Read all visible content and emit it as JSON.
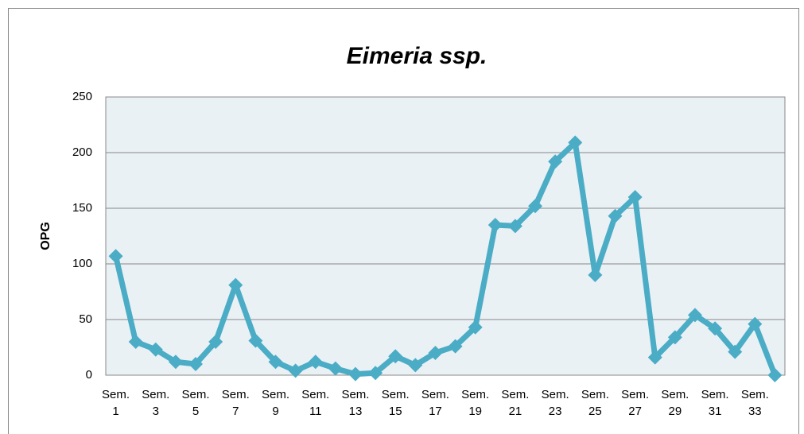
{
  "chart_data": {
    "type": "line",
    "title": "Eimeria ssp.",
    "y_label": "OPG",
    "categories": [
      "Sem. 1",
      null,
      "Sem. 3",
      null,
      "Sem. 5",
      null,
      "Sem. 7",
      null,
      "Sem. 9",
      null,
      "Sem. 11",
      null,
      "Sem. 13",
      null,
      "Sem. 15",
      null,
      "Sem. 17",
      null,
      "Sem. 19",
      null,
      "Sem. 21",
      null,
      "Sem. 23",
      null,
      "Sem. 25",
      null,
      "Sem. 27",
      null,
      "Sem. 29",
      null,
      "Sem. 31",
      null,
      "Sem. 33",
      null
    ],
    "series": [
      {
        "color": "#4bacc6",
        "values": [
          107,
          30,
          23,
          12,
          10,
          30,
          81,
          31,
          12,
          4,
          12,
          6,
          1,
          2,
          17,
          9,
          20,
          26,
          43,
          135,
          134,
          152,
          192,
          209,
          90,
          143,
          160,
          16,
          34,
          54,
          42,
          21,
          46,
          0
        ]
      }
    ],
    "ylim": [
      0,
      250
    ],
    "yticks": [
      0,
      50,
      100,
      150,
      200,
      250
    ],
    "grid": true
  }
}
